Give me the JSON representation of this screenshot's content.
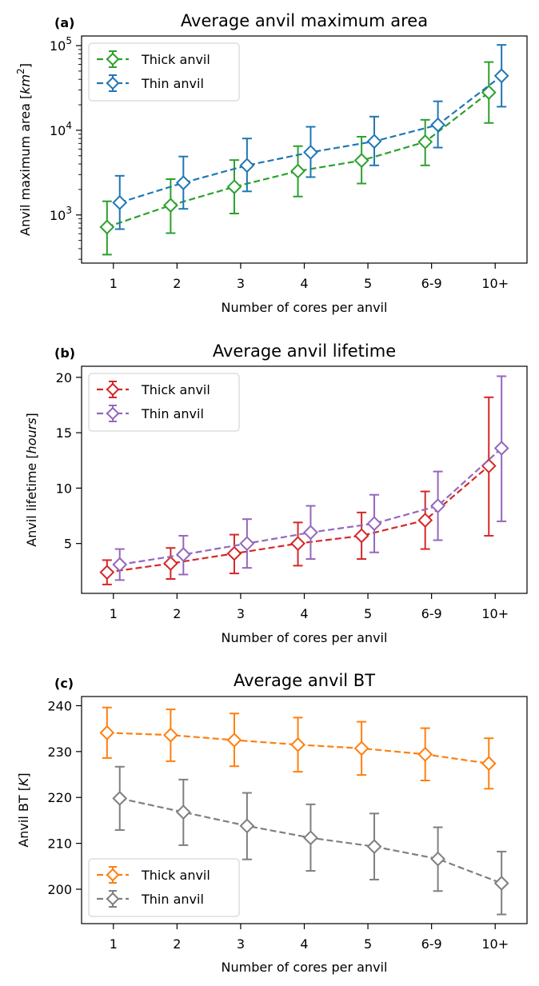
{
  "chart_data": [
    {
      "type": "line",
      "panel_label": "(a)",
      "title": "Average anvil maximum area",
      "xlabel": "Number of cores per anvil",
      "ylabel_parts": [
        "Anvil maximum area [",
        "km",
        "2",
        "]"
      ],
      "yscale": "log",
      "ylim": [
        270,
        130000
      ],
      "yticks": [
        {
          "value": 1000,
          "base": "10",
          "exp": "3"
        },
        {
          "value": 10000,
          "base": "10",
          "exp": "4"
        },
        {
          "value": 100000,
          "base": "10",
          "exp": "5"
        }
      ],
      "categories": [
        "1",
        "2",
        "3",
        "4",
        "5",
        "6-9",
        "10+"
      ],
      "legend_position": "upper left",
      "series": [
        {
          "name": "Thick anvil",
          "color": "#2ca02c",
          "offset": -0.1,
          "values": [
            720,
            1300,
            2150,
            3300,
            4400,
            7300,
            28000
          ],
          "err_low": [
            340,
            610,
            1040,
            1650,
            2350,
            3850,
            12200
          ],
          "err_high": [
            1450,
            2650,
            4450,
            6500,
            8400,
            13300,
            64000
          ]
        },
        {
          "name": "Thin anvil",
          "color": "#1f77b4",
          "offset": 0.1,
          "values": [
            1400,
            2400,
            3850,
            5500,
            7400,
            11600,
            44000
          ],
          "err_low": [
            680,
            1180,
            1900,
            2800,
            3850,
            6250,
            19000
          ],
          "err_high": [
            2900,
            4900,
            8000,
            11000,
            14500,
            22000,
            102000
          ]
        }
      ]
    },
    {
      "type": "line",
      "panel_label": "(b)",
      "title": "Average anvil lifetime",
      "xlabel": "Number of cores per anvil",
      "ylabel_parts": [
        "Anvil lifetime [",
        "hours",
        "",
        "]"
      ],
      "yscale": "linear",
      "ylim": [
        0.5,
        21
      ],
      "yticks": [
        {
          "value": 5,
          "label": "5"
        },
        {
          "value": 10,
          "label": "10"
        },
        {
          "value": 15,
          "label": "15"
        },
        {
          "value": 20,
          "label": "20"
        }
      ],
      "categories": [
        "1",
        "2",
        "3",
        "4",
        "5",
        "6-9",
        "10+"
      ],
      "legend_position": "upper left",
      "series": [
        {
          "name": "Thick anvil",
          "color": "#d62728",
          "offset": -0.1,
          "values": [
            2.4,
            3.2,
            4.1,
            5.0,
            5.7,
            7.1,
            12.0
          ],
          "err_low": [
            1.3,
            1.8,
            2.3,
            3.0,
            3.6,
            4.5,
            5.7
          ],
          "err_high": [
            3.5,
            4.6,
            5.8,
            6.9,
            7.8,
            9.7,
            18.2
          ]
        },
        {
          "name": "Thin anvil",
          "color": "#9467bd",
          "offset": 0.1,
          "values": [
            3.1,
            4.0,
            5.0,
            6.0,
            6.8,
            8.4,
            13.6
          ],
          "err_low": [
            1.7,
            2.2,
            2.8,
            3.6,
            4.2,
            5.3,
            7.0
          ],
          "err_high": [
            4.5,
            5.7,
            7.2,
            8.4,
            9.4,
            11.5,
            20.1
          ]
        }
      ]
    },
    {
      "type": "line",
      "panel_label": "(c)",
      "title": "Average anvil BT",
      "xlabel": "Number of cores per anvil",
      "ylabel_parts": [
        "Anvil BT [",
        "K",
        "",
        "]"
      ],
      "yscale": "linear",
      "ylim": [
        192.5,
        242
      ],
      "yticks": [
        {
          "value": 200,
          "label": "200"
        },
        {
          "value": 210,
          "label": "210"
        },
        {
          "value": 220,
          "label": "220"
        },
        {
          "value": 230,
          "label": "230"
        },
        {
          "value": 240,
          "label": "240"
        }
      ],
      "categories": [
        "1",
        "2",
        "3",
        "4",
        "5",
        "6-9",
        "10+"
      ],
      "legend_position": "lower left",
      "series": [
        {
          "name": "Thick anvil",
          "color": "#ff7f0e",
          "offset": -0.1,
          "values": [
            234.1,
            233.6,
            232.5,
            231.5,
            230.7,
            229.4,
            227.4
          ],
          "err_low": [
            228.6,
            227.9,
            226.8,
            225.6,
            224.9,
            223.7,
            221.9
          ],
          "err_high": [
            239.6,
            239.2,
            238.3,
            237.4,
            236.5,
            235.1,
            232.9
          ]
        },
        {
          "name": "Thin anvil",
          "color": "#7f7f7f",
          "offset": 0.1,
          "values": [
            219.8,
            216.8,
            213.8,
            211.2,
            209.3,
            206.6,
            201.3
          ],
          "err_low": [
            212.9,
            209.6,
            206.5,
            204.0,
            202.1,
            199.6,
            194.5
          ],
          "err_high": [
            226.7,
            223.9,
            221.0,
            218.5,
            216.5,
            213.5,
            208.2
          ]
        }
      ]
    }
  ]
}
